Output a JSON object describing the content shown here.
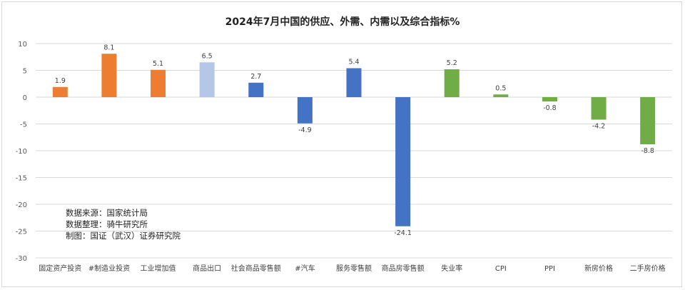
{
  "chart_data": {
    "type": "bar",
    "title": "2024年7月中国的供应、外需、内需以及综合指标%",
    "categories": [
      "固定资产投资",
      "#制造业投资",
      "工业增加值",
      "商品出口",
      "社会商品零售额",
      "#汽车",
      "服务零售额",
      "商品房零售额",
      "失业率",
      "CPI",
      "PPI",
      "新房价格",
      "二手房价格"
    ],
    "values": [
      1.9,
      8.1,
      5.1,
      6.5,
      2.7,
      -4.9,
      5.4,
      -24.1,
      5.2,
      0.5,
      -0.8,
      -4.2,
      -8.8
    ],
    "data_labels": [
      "1.9",
      "8.1",
      "5.1",
      "6.5",
      "2.7",
      "-4.9",
      "5.4",
      "-24.1",
      "5.2",
      "0.5",
      "-0.8",
      "-4.2",
      "-8.8"
    ],
    "bar_colors": [
      "#ed7d31",
      "#ed7d31",
      "#ed7d31",
      "#b4c7e7",
      "#4472c4",
      "#4472c4",
      "#4472c4",
      "#4472c4",
      "#70ad47",
      "#70ad47",
      "#70ad47",
      "#70ad47",
      "#70ad47"
    ],
    "yticks": [
      10,
      5,
      0,
      -5,
      -10,
      -15,
      -20,
      -25,
      -30
    ],
    "ylim": [
      -30,
      10
    ],
    "grid": true,
    "xlabel": "",
    "ylabel": ""
  },
  "source_notes": [
    "数据来源：国家统计局",
    "数据整理：骑牛研究所",
    "制图：国证（武汉）证券研究院"
  ]
}
